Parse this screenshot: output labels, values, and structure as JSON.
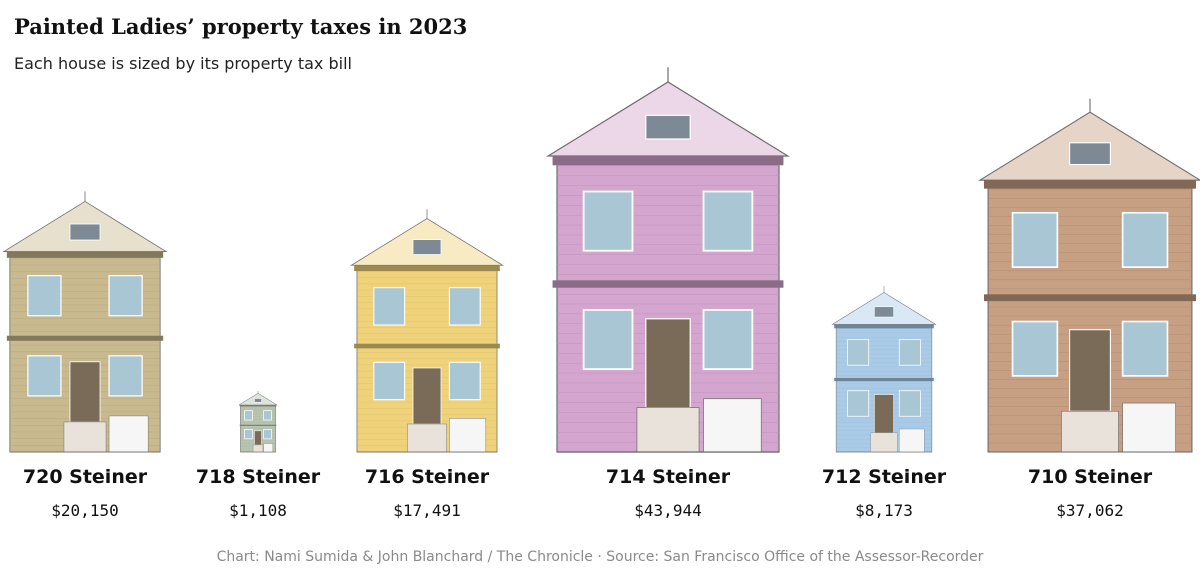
{
  "header": {
    "title": "Painted Ladies’ property taxes in 2023",
    "subtitle": "Each house is sized by its property tax bill"
  },
  "footer": {
    "credit": "Chart: Nami Sumida & John Blanchard / The Chronicle · Source: San Francisco Office of the Assessor-Recorder"
  },
  "chart_data": {
    "type": "bar",
    "title": "Painted Ladies’ property taxes in 2023",
    "subtitle": "Each house is sized by its property tax bill",
    "categories": [
      "720 Steiner",
      "718 Steiner",
      "716 Steiner",
      "714 Steiner",
      "712 Steiner",
      "710 Steiner"
    ],
    "values": [
      20150,
      1108,
      17491,
      43944,
      8173,
      37062
    ],
    "value_labels": [
      "$20,150",
      "$1,108",
      "$17,491",
      "$43,944",
      "$8,173",
      "$37,062"
    ],
    "unit": "USD",
    "encoding": "house illustration area proportional to tax bill",
    "colors": [
      "#c8b98e",
      "#b8c4b0",
      "#efd27a",
      "#d4a6cf",
      "#a9cbe8",
      "#c79f82"
    ],
    "xlabel": "",
    "ylabel": "",
    "grid": false,
    "legend": "none"
  }
}
